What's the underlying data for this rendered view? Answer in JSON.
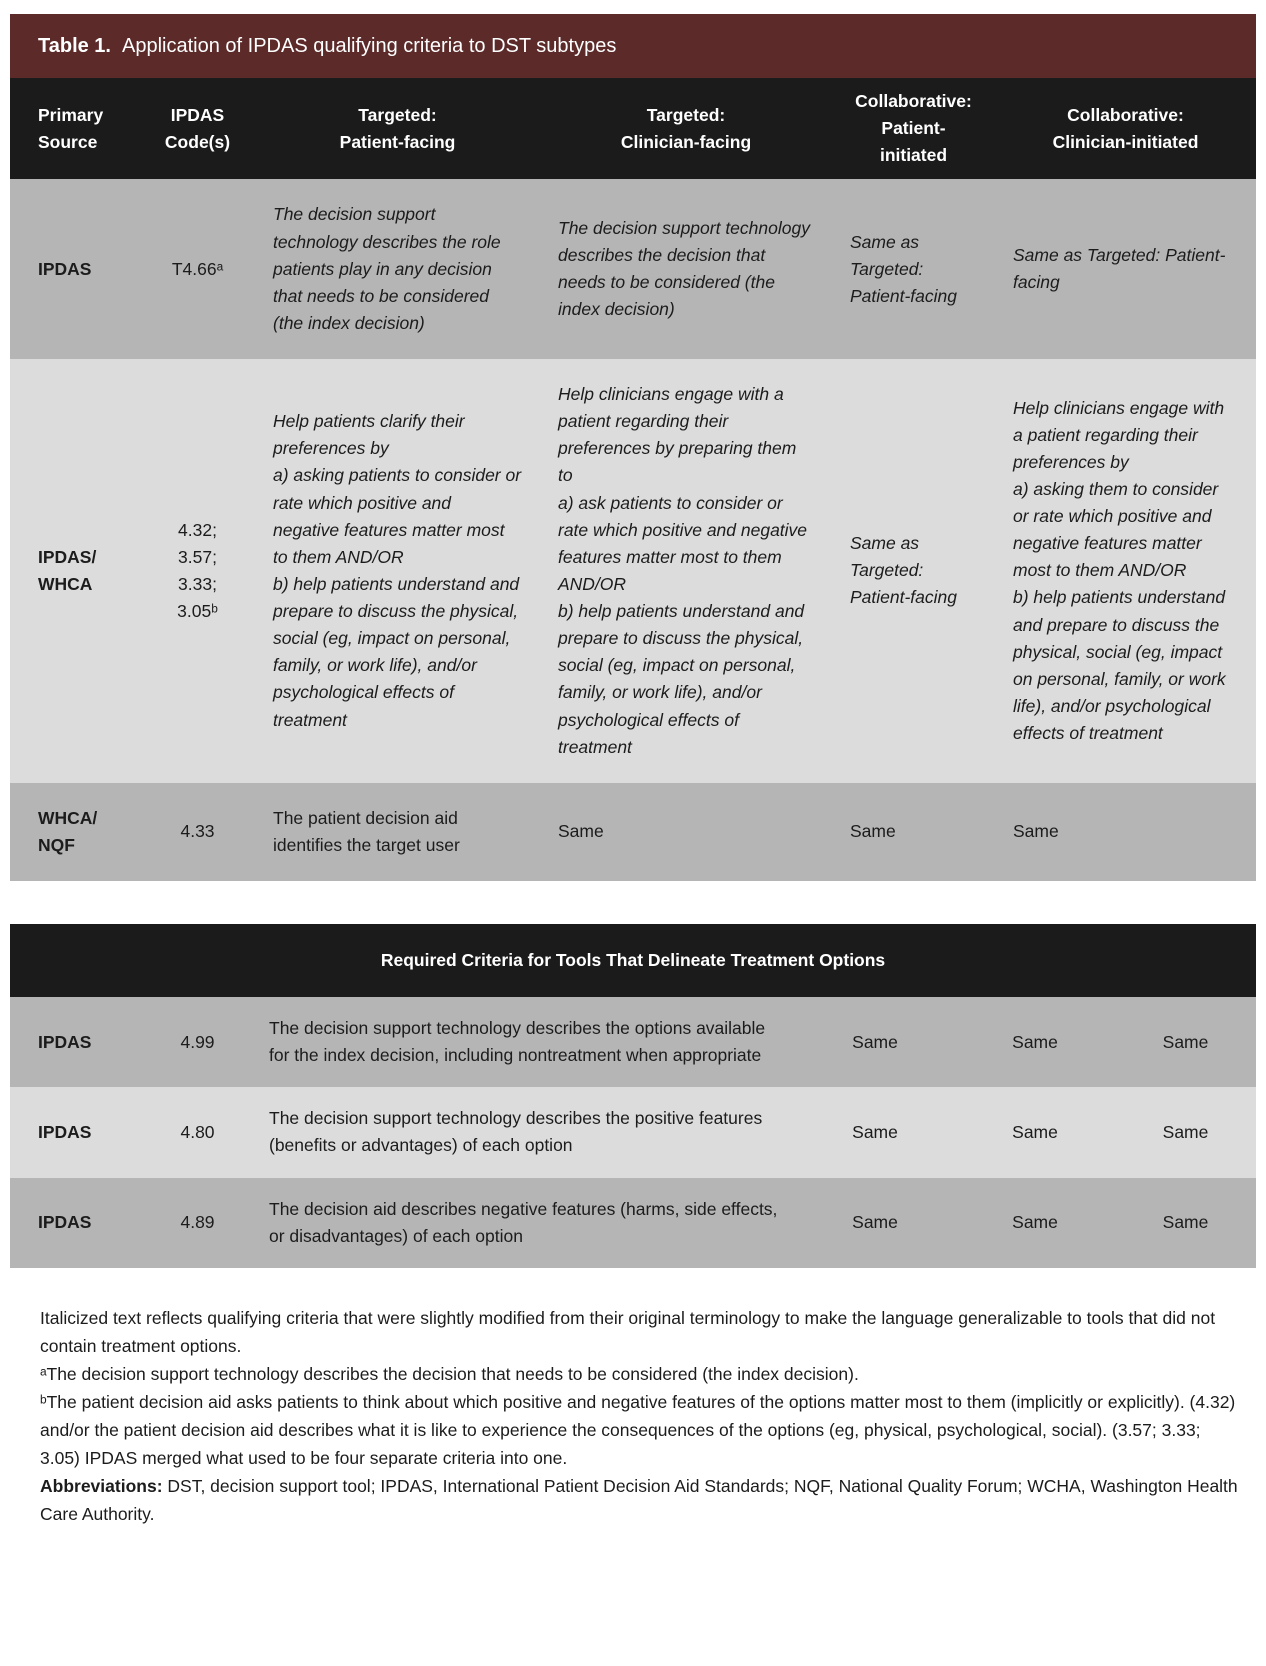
{
  "colors": {
    "title-bar": "#5b2a29",
    "header-bar": "#1b1b1b",
    "row-dark": "#b5b5b5",
    "row-light": "#dcdcdc",
    "header-text": "#ffffff",
    "body-text": "#1c1c1c"
  },
  "table1": {
    "title_label": "Table 1.",
    "title_text": "Application of IPDAS qualifying criteria to DST subtypes",
    "columns": [
      "Primary\nSource",
      "IPDAS\nCode(s)",
      "Targeted:\nPatient-facing",
      "Targeted:\nClinician-facing",
      "Collaborative:\nPatient-\ninitiated",
      "Collaborative:\nClinician-initiated"
    ],
    "rows": [
      {
        "source": "IPDAS",
        "codes": "T4.66ᵃ",
        "patient_facing": "The decision support technology describes the role patients play in any decision that needs to be considered (the index decision)",
        "clinician_facing": "The decision support technology describes the decision that needs to be considered (the index decision)",
        "collab_patient": "Same as Targeted: Patient-facing",
        "collab_clinician": "Same as Targeted: Patient-facing"
      },
      {
        "source": "IPDAS/\nWHCA",
        "codes": "4.32;\n3.57;\n3.33;\n3.05ᵇ",
        "patient_facing": "Help patients clarify their preferences by\na) asking patients to consider or rate which positive and negative features matter most to them AND/OR\nb) help patients understand and prepare to discuss the physical, social (eg, impact on personal, family, or work life), and/or psychological effects of treatment",
        "clinician_facing": "Help clinicians engage with a patient regarding their preferences by preparing them to\na) ask patients to consider or rate which positive and negative features matter most to them AND/OR\nb) help patients understand and prepare to discuss the physical, social (eg, impact on personal, family, or work life), and/or psychological effects of treatment",
        "collab_patient": "Same as Targeted: Patient-facing",
        "collab_clinician": "Help clinicians engage with a patient regarding their preferences by\na) asking them to consider or rate which positive and negative features matter most to them AND/OR\nb) help patients understand and prepare to discuss the physical, social (eg, impact on personal, family, or work life), and/or psychological effects of treatment"
      },
      {
        "source": "WHCA/\nNQF",
        "codes": "4.33",
        "patient_facing": "The patient decision aid identifies the target user",
        "clinician_facing": "Same",
        "collab_patient": "Same",
        "collab_clinician": "Same"
      }
    ]
  },
  "table2": {
    "header": "Required Criteria for Tools That Delineate Treatment Options",
    "rows": [
      {
        "source": "IPDAS",
        "codes": "4.99",
        "description": "The decision support technology describes the options available for the index decision, including nontreatment when appropriate",
        "same1": "Same",
        "same2": "Same",
        "same3": "Same"
      },
      {
        "source": "IPDAS",
        "codes": "4.80",
        "description": "The decision support technology describes the positive features (benefits or advantages) of each option",
        "same1": "Same",
        "same2": "Same",
        "same3": "Same"
      },
      {
        "source": "IPDAS",
        "codes": "4.89",
        "description": "The decision aid describes negative features (harms, side effects, or disadvantages) of each option",
        "same1": "Same",
        "same2": "Same",
        "same3": "Same"
      }
    ]
  },
  "footnotes": {
    "italic_note": "Italicized text reflects qualifying criteria that were slightly modified from their original terminology to make the language generalizable to tools that did not contain treatment options.",
    "note_a": "ᵃThe decision support technology describes the decision that needs to be considered (the index decision).",
    "note_b": "ᵇThe patient decision aid asks patients to think about which positive and negative features of the options matter most to them (implicitly or explicitly). (4.32) and/or the patient decision aid describes what it is like to experience the consequences of the options (eg, physical, psychological, social). (3.57; 3.33; 3.05) IPDAS merged what used to be four separate criteria into one.",
    "abbreviations_label": "Abbreviations:",
    "abbreviations_text": " DST, decision support tool; IPDAS, International Patient Decision Aid Standards; NQF, National Quality Forum; WCHA, Washington Health Care Authority."
  }
}
